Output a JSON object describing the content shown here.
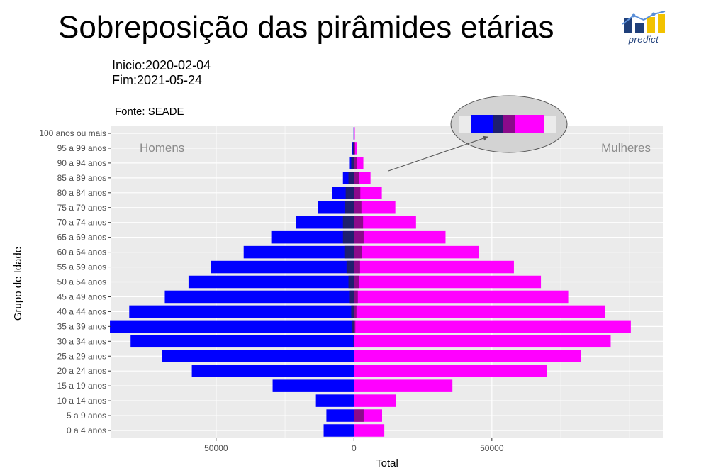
{
  "header": {
    "title": "Sobreposição das pirâmides etárias",
    "logo_text": "predict",
    "start_label": "Inicio:2020-02-04",
    "end_label": "Fim:2021-05-24",
    "source_label": "Fonte: SEADE"
  },
  "colors": {
    "men_total": "#0000ff",
    "men_overlap": "#1f1f6e",
    "women_total": "#ff00ff",
    "women_overlap": "#8b0a8b",
    "panel_bg": "#ebebeb",
    "grid": "#ffffff"
  },
  "chart_data": {
    "type": "bar",
    "orientation": "horizontal",
    "title": "Sobreposição das pirâmides etárias",
    "xlabel": "Total",
    "ylabel": "Grupo de Idade",
    "xlim": [
      -88000,
      112000
    ],
    "x_ticks": [
      -50000,
      0,
      50000
    ],
    "x_tick_labels": [
      "50000",
      "0",
      "50000"
    ],
    "grid": true,
    "annotations": {
      "left": "Homens",
      "right": "Mulheres"
    },
    "categories": [
      "0 a 4 anos",
      "5 a 9 anos",
      "10 a 14 anos",
      "15 a 19 anos",
      "20 a 24 anos",
      "25 a 29 anos",
      "30 a 34 anos",
      "35 a 39 anos",
      "40 a 44 anos",
      "45 a 49 anos",
      "50 a 54 anos",
      "55 a 59 anos",
      "60 a 64 anos",
      "65 a 69 anos",
      "70 a 74 anos",
      "75 a 79 anos",
      "80 a 84 anos",
      "85 a 89 anos",
      "90 a 94 anos",
      "95 a 99 anos",
      "100 anos ou mais"
    ],
    "series": [
      {
        "values": [
          11000,
          10000,
          13800,
          29500,
          58800,
          69500,
          81000,
          88500,
          81500,
          68600,
          60000,
          51800,
          40000,
          30000,
          21000,
          13000,
          8000,
          4000,
          1500,
          600,
          150
        ]
      },
      {
        "values": [
          0,
          0,
          0,
          0,
          0,
          0,
          200,
          700,
          1000,
          1500,
          2000,
          2700,
          3500,
          4000,
          4000,
          3300,
          3000,
          2000,
          1000,
          400,
          100
        ]
      },
      {
        "values": [
          11000,
          10200,
          15200,
          35700,
          70000,
          82200,
          93100,
          100400,
          91100,
          77700,
          67800,
          58000,
          45400,
          33200,
          22500,
          15000,
          10100,
          6000,
          3400,
          1200,
          300
        ]
      },
      {
        "values": [
          0,
          3500,
          0,
          0,
          0,
          0,
          0,
          500,
          900,
          1400,
          1900,
          2200,
          2800,
          3500,
          3300,
          2700,
          2300,
          1900,
          1000,
          400,
          100
        ]
      }
    ]
  }
}
